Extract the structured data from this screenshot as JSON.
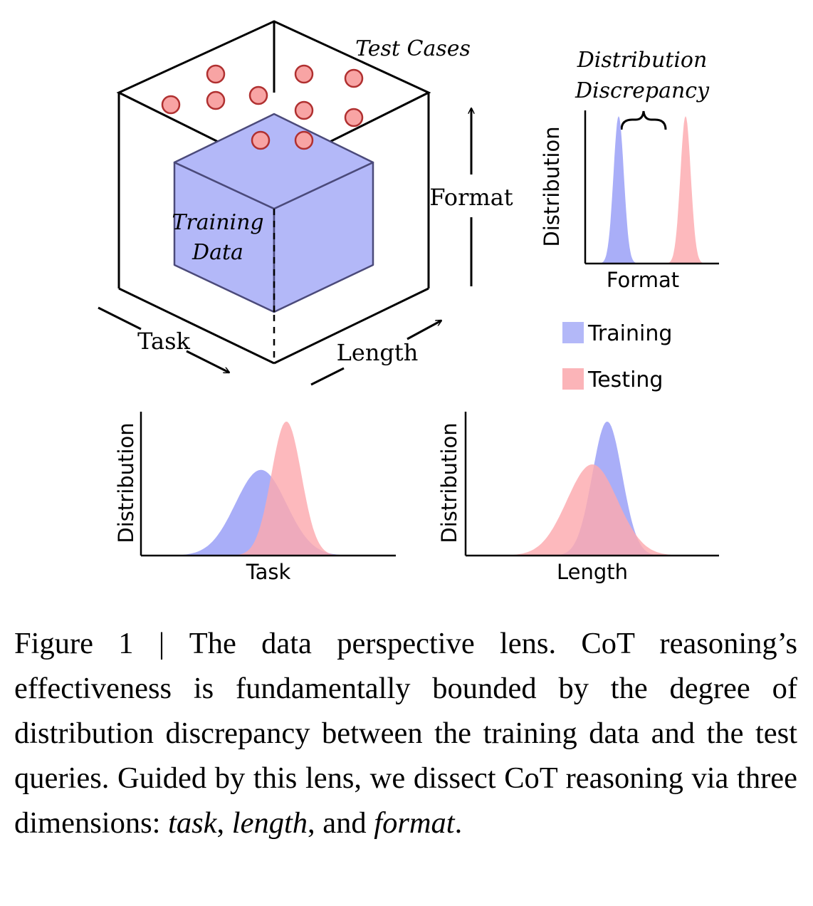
{
  "figure": {
    "cube": {
      "test_cases_label": "Test Cases",
      "training_data_label_line1": "Training",
      "training_data_label_line2": "Data",
      "axis_task": "Task",
      "axis_length": "Length",
      "axis_format": "Format"
    },
    "discrepancy_label_line1": "Distribution",
    "discrepancy_label_line2": "Discrepancy",
    "legend": [
      {
        "label": "Training",
        "color": "#b3b8f8"
      },
      {
        "label": "Testing",
        "color": "#fbb4b8"
      }
    ],
    "colors": {
      "training": "#a9aef8",
      "testing": "#fcaaae",
      "test_case_fill": "#f8a4a4",
      "test_case_stroke": "#b03030",
      "cube_fill": "#b3b8f8",
      "cube_stroke": "#4b4a7a"
    }
  },
  "chart_data": [
    {
      "type": "area",
      "xlabel": "Format",
      "ylabel": "Distribution",
      "series": [
        {
          "name": "Training",
          "mean": -0.45,
          "std": 0.07,
          "peak": 1.0
        },
        {
          "name": "Testing",
          "mean": 0.45,
          "std": 0.07,
          "peak": 1.0
        }
      ]
    },
    {
      "type": "area",
      "xlabel": "Task",
      "ylabel": "Distribution",
      "series": [
        {
          "name": "Training",
          "mean": -0.05,
          "std": 0.17,
          "peak": 0.62
        },
        {
          "name": "Testing",
          "mean": 0.12,
          "std": 0.1,
          "peak": 0.97
        }
      ]
    },
    {
      "type": "area",
      "xlabel": "Length",
      "ylabel": "Distribution",
      "series": [
        {
          "name": "Training",
          "mean": 0.1,
          "std": 0.1,
          "peak": 0.97
        },
        {
          "name": "Testing",
          "mean": 0.0,
          "std": 0.17,
          "peak": 0.66
        }
      ]
    }
  ],
  "caption": {
    "lead": "Figure 1 | The data perspective lens. CoT reasoning’s effectiveness is fundamentally bounded by the degree of distribution discrepancy between the training data and the test queries. Guided by this lens, we dissect CoT reasoning via three dimensions: ",
    "dim1": "task",
    "sep1": ", ",
    "dim2": "length",
    "sep2": ", and ",
    "dim3": "format",
    "tail": "."
  }
}
